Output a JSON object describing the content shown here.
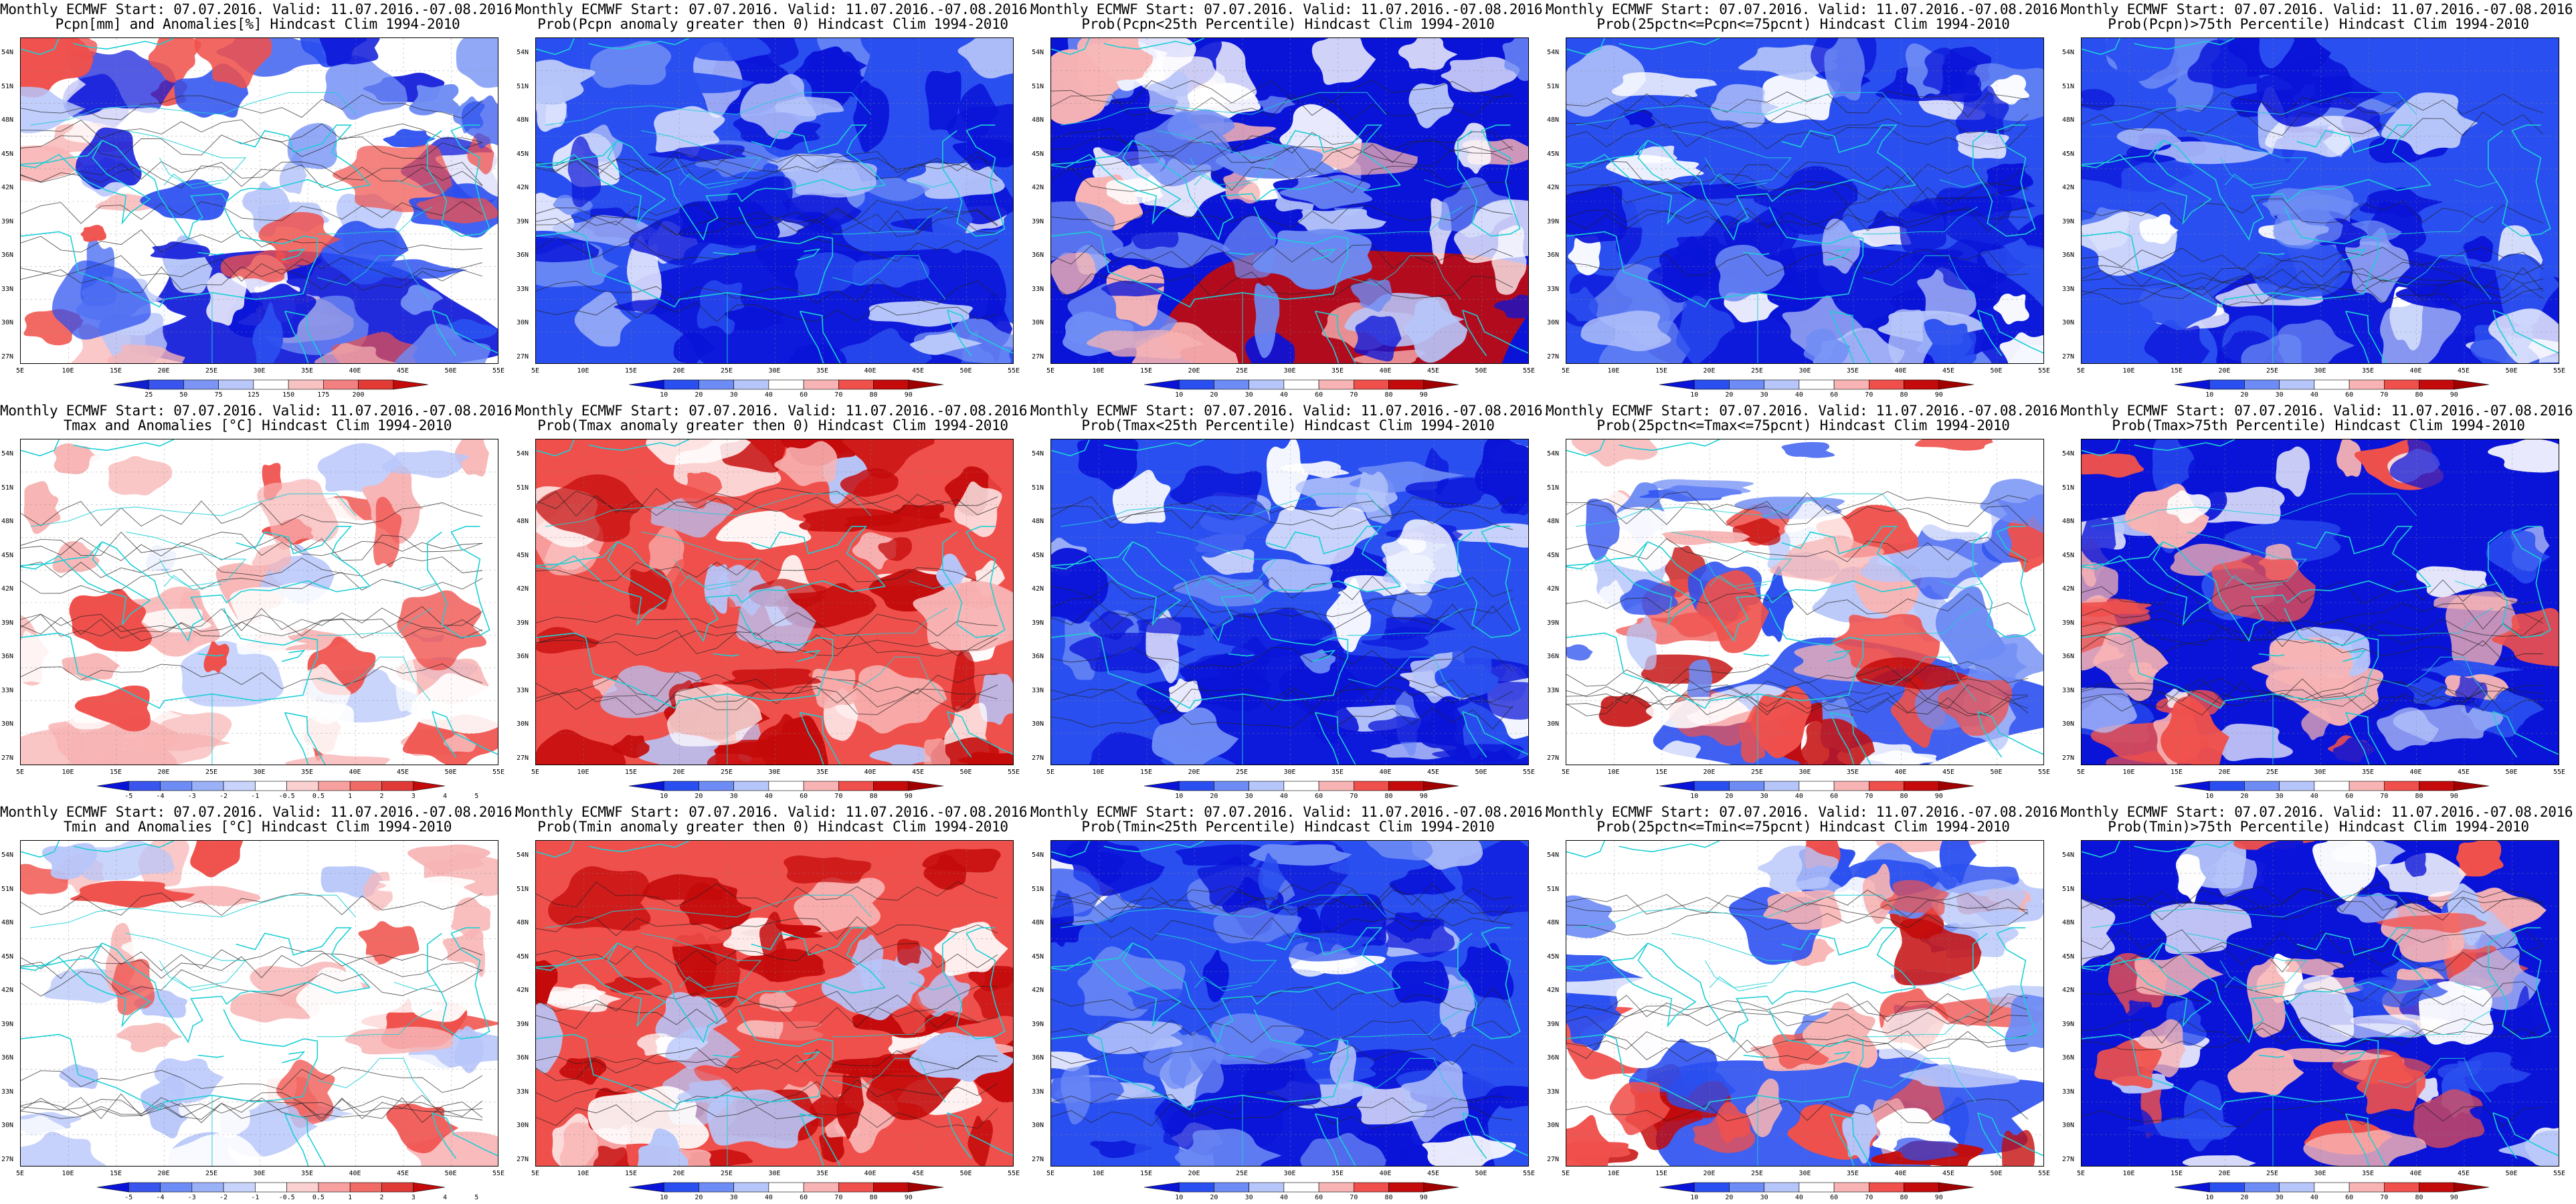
{
  "page": {
    "panels": [
      {
        "title1": "Monthly ECMWF Start: 07.07.2016. Valid: 11.07.2016.-07.08.2016.",
        "title2": "Pcpn[mm] and Anomalies[%] Hindcast Clim 1994-2010",
        "scheme": "pcpn",
        "ticks": [
          "25",
          "50",
          "75",
          "125",
          "150",
          "175",
          "200"
        ]
      },
      {
        "title1": "Monthly ECMWF Start: 07.07.2016. Valid: 11.07.2016.-07.08.2016.",
        "title2": "Prob(Pcpn anomaly greater then 0) Hindcast Clim 1994-2010",
        "scheme": "cold",
        "ticks": [
          "10",
          "20",
          "30",
          "40",
          "60",
          "70",
          "80",
          "90"
        ]
      },
      {
        "title1": "Monthly ECMWF Start: 07.07.2016. Valid: 11.07.2016.-07.08.2016.",
        "title2": "Prob(Pcpn<25th Percentile) Hindcast Clim 1994-2010",
        "scheme": "dry",
        "ticks": [
          "10",
          "20",
          "30",
          "40",
          "60",
          "70",
          "80",
          "90"
        ]
      },
      {
        "title1": "Monthly ECMWF Start: 07.07.2016. Valid: 11.07.2016.-07.08.2016.",
        "title2": "Prob(25pctn<=Pcpn<=75pcnt) Hindcast Clim 1994-2010",
        "scheme": "cold",
        "ticks": [
          "10",
          "20",
          "30",
          "40",
          "60",
          "70",
          "80",
          "90"
        ]
      },
      {
        "title1": "Monthly ECMWF Start: 07.07.2016. Valid: 11.07.2016.-07.08.2016.",
        "title2": "Prob(Pcpn)>75th Percentile) Hindcast Clim 1994-2010",
        "scheme": "cold",
        "ticks": [
          "10",
          "20",
          "30",
          "40",
          "60",
          "70",
          "80",
          "90"
        ]
      },
      {
        "title1": "Monthly ECMWF Start: 07.07.2016. Valid: 11.07.2016.-07.08.2016.",
        "title2": "Tmax and Anomalies [°C] Hindcast Clim 1994-2010",
        "scheme": "pale",
        "ticks": [
          "-5",
          "-4",
          "-3",
          "-2",
          "-1",
          "-0.5",
          "0.5",
          "1",
          "2",
          "3",
          "4",
          "5"
        ]
      },
      {
        "title1": "Monthly ECMWF Start: 07.07.2016. Valid: 11.07.2016.-07.08.2016.",
        "title2": "Prob(Tmax anomaly greater then 0) Hindcast Clim 1994-2010",
        "scheme": "hot",
        "ticks": [
          "10",
          "20",
          "30",
          "40",
          "60",
          "70",
          "80",
          "90"
        ]
      },
      {
        "title1": "Monthly ECMWF Start: 07.07.2016. Valid: 11.07.2016.-07.08.2016.",
        "title2": "Prob(Tmax<25th Percentile) Hindcast Clim 1994-2010",
        "scheme": "cold",
        "ticks": [
          "10",
          "20",
          "30",
          "40",
          "60",
          "70",
          "80",
          "90"
        ]
      },
      {
        "title1": "Monthly ECMWF Start: 07.07.2016. Valid: 11.07.2016.-07.08.2016.",
        "title2": "Prob(25pctn<=Tmax<=75pcnt) Hindcast Clim 1994-2010",
        "scheme": "mixed",
        "ticks": [
          "10",
          "20",
          "30",
          "40",
          "60",
          "70",
          "80",
          "90"
        ]
      },
      {
        "title1": "Monthly ECMWF Start: 07.07.2016. Valid: 11.07.2016.-07.08.2016.",
        "title2": "Prob(Tmax>75th Percentile) Hindcast Clim 1994-2010",
        "scheme": "bluehot",
        "ticks": [
          "10",
          "20",
          "30",
          "40",
          "60",
          "70",
          "80",
          "90"
        ]
      },
      {
        "title1": "Monthly ECMWF Start: 07.07.2016. Valid: 11.07.2016.-07.08.2016.",
        "title2": "Tmin and Anomalies [°C] Hindcast Clim 1994-2010",
        "scheme": "pale",
        "ticks": [
          "-5",
          "-4",
          "-3",
          "-2",
          "-1",
          "-0.5",
          "0.5",
          "1",
          "2",
          "3",
          "4",
          "5"
        ]
      },
      {
        "title1": "Monthly ECMWF Start: 07.07.2016. Valid: 11.07.2016.-07.08.2016.",
        "title2": "Prob(Tmin anomaly greater then 0) Hindcast Clim 1994-2010",
        "scheme": "hot",
        "ticks": [
          "10",
          "20",
          "30",
          "40",
          "60",
          "70",
          "80",
          "90"
        ]
      },
      {
        "title1": "Monthly ECMWF Start: 07.07.2016. Valid: 11.07.2016.-07.08.2016.",
        "title2": "Prob(Tmin<25th Percentile) Hindcast Clim 1994-2010",
        "scheme": "cold",
        "ticks": [
          "10",
          "20",
          "30",
          "40",
          "60",
          "70",
          "80",
          "90"
        ]
      },
      {
        "title1": "Monthly ECMWF Start: 07.07.2016. Valid: 11.07.2016.-07.08.2016.",
        "title2": "Prob(25pctn<=Tmin<=75pcnt) Hindcast Clim 1994-2010",
        "scheme": "mixed",
        "ticks": [
          "10",
          "20",
          "30",
          "40",
          "60",
          "70",
          "80",
          "90"
        ]
      },
      {
        "title1": "Monthly ECMWF Start: 07.07.2016. Valid: 11.07.2016.-07.08.2016.",
        "title2": "Prob(Tmin)>75th Percentile) Hindcast Clim 1994-2010",
        "scheme": "bluehot",
        "ticks": [
          "10",
          "20",
          "30",
          "40",
          "60",
          "70",
          "80",
          "90"
        ]
      }
    ],
    "lat_labels": [
      "54N",
      "51N",
      "48N",
      "45N",
      "42N",
      "39N",
      "36N",
      "33N",
      "30N",
      "27N"
    ],
    "lon_labels": [
      "5E",
      "10E",
      "15E",
      "20E",
      "25E",
      "30E",
      "35E",
      "40E",
      "45E",
      "50E",
      "55E"
    ]
  },
  "colors": {
    "deep_blue": "#0a14d8",
    "blue": "#2a4ff0",
    "mid_blue": "#6e8cf5",
    "light_blue": "#b7c6fa",
    "white": "#ffffff",
    "light_red": "#f8b4b4",
    "red": "#f0504b",
    "dark_red": "#c40a0a",
    "deeper_red": "#a00000",
    "coast": "#1ccfd6",
    "contour": "#222222"
  }
}
